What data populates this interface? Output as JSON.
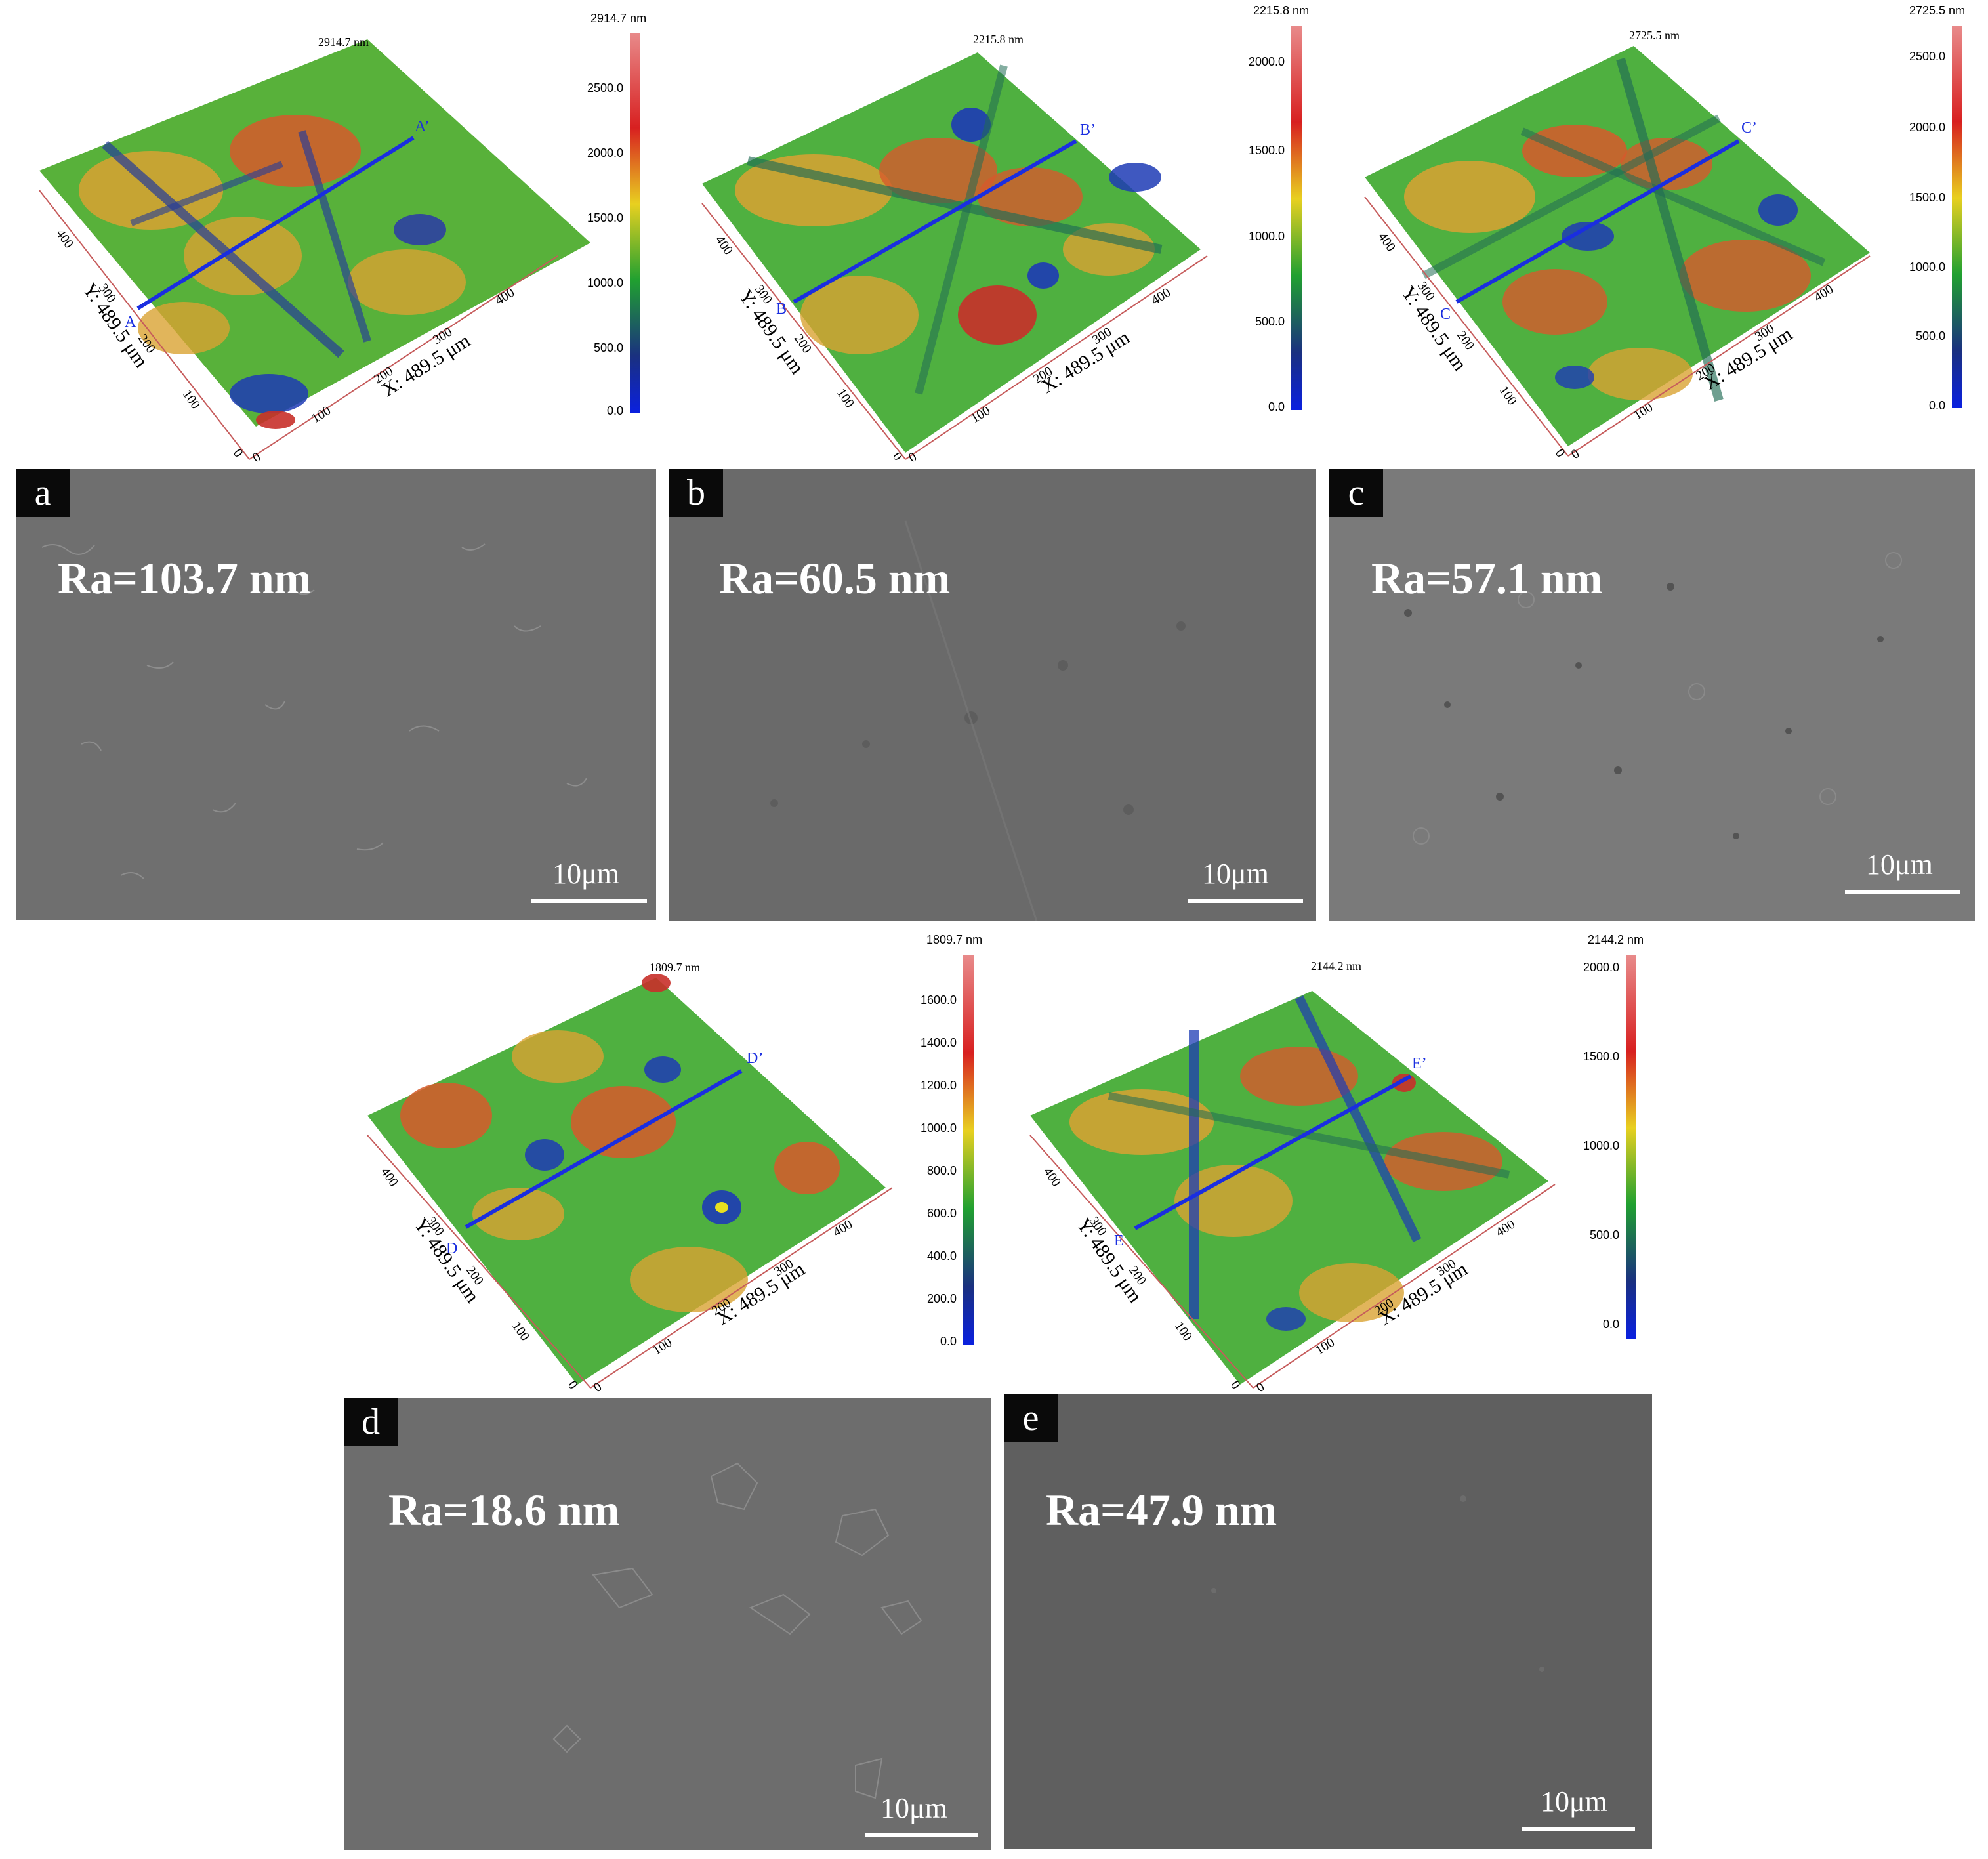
{
  "panels": [
    {
      "id": "a",
      "ra": "Ra=103.7 nm",
      "scale": "10μm",
      "top_max": "2914.7 nm",
      "cbar_title": "2914.7 nm",
      "cbar_ticks": [
        "2500.0",
        "2000.0",
        "1500.0",
        "1000.0",
        "500.0",
        "0.0"
      ],
      "line_start": "A",
      "line_end": "A’",
      "y_axis": "Y: 489.5 μm",
      "x_axis": "X: 489.5 μm",
      "y_ticks": [
        "400",
        "300",
        "200",
        "100",
        "0"
      ],
      "x_ticks": [
        "0",
        "100",
        "200",
        "300",
        "400"
      ]
    },
    {
      "id": "b",
      "ra": "Ra=60.5 nm",
      "scale": "10μm",
      "top_max": "2215.8 nm",
      "cbar_title": "2215.8 nm",
      "cbar_ticks": [
        "2000.0",
        "1500.0",
        "1000.0",
        "500.0",
        "0.0"
      ],
      "line_start": "B",
      "line_end": "B’",
      "y_axis": "Y: 489.5 μm",
      "x_axis": "X: 489.5 μm",
      "y_ticks": [
        "400",
        "300",
        "200",
        "100",
        "0"
      ],
      "x_ticks": [
        "0",
        "100",
        "200",
        "300",
        "400"
      ]
    },
    {
      "id": "c",
      "ra": "Ra=57.1 nm",
      "scale": "10μm",
      "top_max": "2725.5 nm",
      "cbar_title": "2725.5 nm",
      "cbar_ticks": [
        "2500.0",
        "2000.0",
        "1500.0",
        "1000.0",
        "500.0",
        "0.0"
      ],
      "line_start": "C",
      "line_end": "C’",
      "y_axis": "Y: 489.5 μm",
      "x_axis": "X: 489.5 μm",
      "y_ticks": [
        "400",
        "300",
        "200",
        "100",
        "0"
      ],
      "x_ticks": [
        "0",
        "100",
        "200",
        "300",
        "400"
      ]
    },
    {
      "id": "d",
      "ra": "Ra=18.6 nm",
      "scale": "10μm",
      "top_max": "1809.7 nm",
      "cbar_title": "1809.7 nm",
      "cbar_ticks": [
        "1600.0",
        "1400.0",
        "1200.0",
        "1000.0",
        "800.0",
        "600.0",
        "400.0",
        "200.0",
        "0.0"
      ],
      "line_start": "D",
      "line_end": "D’",
      "y_axis": "Y: 489.5 μm",
      "x_axis": "X: 489.5 μm",
      "y_ticks": [
        "400",
        "300",
        "200",
        "100",
        "0"
      ],
      "x_ticks": [
        "0",
        "100",
        "200",
        "300",
        "400"
      ]
    },
    {
      "id": "e",
      "ra": "Ra=47.9 nm",
      "scale": "10μm",
      "top_max": "2144.2 nm",
      "cbar_title": "2144.2 nm",
      "cbar_ticks": [
        "2000.0",
        "1500.0",
        "1000.0",
        "500.0",
        "0.0"
      ],
      "line_start": "E",
      "line_end": "E’",
      "y_axis": "Y: 489.5 μm",
      "x_axis": "X: 489.5 μm",
      "y_ticks": [
        "400",
        "300",
        "200",
        "100",
        "0"
      ],
      "x_ticks": [
        "0",
        "100",
        "200",
        "300",
        "400"
      ]
    }
  ],
  "colors": {
    "line": "#1a2ee0",
    "sem_bg": "#6e6e6e",
    "text": "#ffffff",
    "tag_bg": "#0a0a0a"
  }
}
